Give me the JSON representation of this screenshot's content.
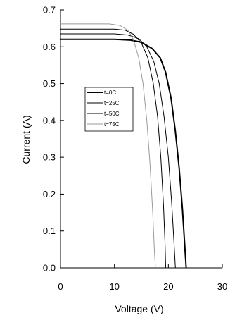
{
  "chart_data": {
    "type": "line",
    "xlabel": "Voltage (V)",
    "ylabel": "Current (A)",
    "xlim": [
      0,
      30
    ],
    "ylim": [
      0,
      0.7
    ],
    "x_ticks": [
      "0",
      "10",
      "20",
      "30"
    ],
    "y_ticks": [
      "0.0",
      "0.1",
      "0.2",
      "0.3",
      "0.4",
      "0.5",
      "0.6",
      "0.7"
    ],
    "grid": false,
    "legend_position": "center-left",
    "series": [
      {
        "name": "t=0C",
        "color": "#000000",
        "x": [
          0,
          10,
          13,
          15,
          17,
          18.5,
          19.5,
          20.5,
          21.3,
          22,
          22.6,
          23,
          23.3
        ],
        "y": [
          0.62,
          0.62,
          0.618,
          0.612,
          0.595,
          0.57,
          0.53,
          0.46,
          0.37,
          0.27,
          0.16,
          0.07,
          0
        ]
      },
      {
        "name": "t=25C",
        "color": "#000000",
        "x": [
          0,
          10,
          12.5,
          14.5,
          16,
          17.3,
          18.3,
          19.2,
          20,
          20.6,
          21,
          21.3
        ],
        "y": [
          0.635,
          0.635,
          0.632,
          0.622,
          0.6,
          0.56,
          0.5,
          0.41,
          0.3,
          0.18,
          0.08,
          0
        ]
      },
      {
        "name": "t=50C",
        "color": "#000000",
        "x": [
          0,
          10,
          12,
          13.5,
          15,
          16.2,
          17.2,
          18,
          18.6,
          19.1,
          19.4,
          19.5
        ],
        "y": [
          0.648,
          0.648,
          0.645,
          0.634,
          0.61,
          0.57,
          0.5,
          0.41,
          0.3,
          0.17,
          0.06,
          0
        ]
      },
      {
        "name": "t=75C",
        "color": "#999999",
        "x": [
          0,
          9,
          11,
          12.5,
          13.5,
          14.5,
          15.3,
          16,
          16.6,
          17.1,
          17.4,
          17.6
        ],
        "y": [
          0.662,
          0.662,
          0.658,
          0.645,
          0.62,
          0.57,
          0.5,
          0.4,
          0.28,
          0.15,
          0.05,
          0
        ]
      }
    ]
  }
}
